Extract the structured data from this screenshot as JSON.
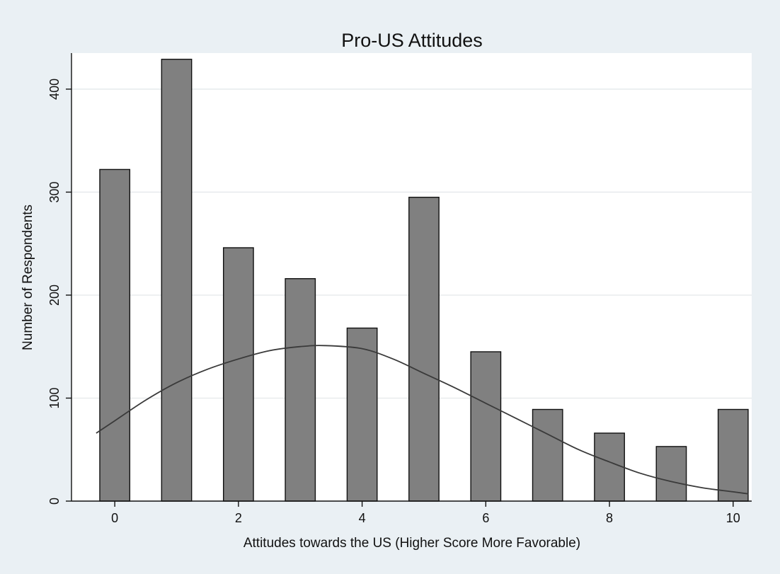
{
  "chart_data": {
    "type": "bar",
    "title": "Pro-US Attitudes",
    "xlabel": "Attitudes towards the US (Higher Score More Favorable)",
    "ylabel": "Number of Respondents",
    "x": [
      0,
      1,
      2,
      3,
      4,
      5,
      6,
      7,
      8,
      9,
      10
    ],
    "values": [
      322,
      429,
      246,
      216,
      168,
      295,
      145,
      89,
      66,
      53,
      89
    ],
    "xlim": [
      -0.7,
      10.3
    ],
    "ylim": [
      0,
      435
    ],
    "xticks": [
      0,
      2,
      4,
      6,
      8,
      10
    ],
    "yticks": [
      0,
      100,
      200,
      300,
      400
    ],
    "grid": true,
    "legend": "none",
    "overlay": {
      "type": "normal-density-curve",
      "x": [
        -0.3,
        0,
        0.5,
        1,
        1.5,
        2,
        2.5,
        3,
        3.4,
        4,
        4.5,
        5,
        5.5,
        6,
        6.5,
        7,
        7.5,
        8,
        8.5,
        9,
        9.5,
        10,
        10.25
      ],
      "y": [
        66,
        78,
        98,
        115,
        128,
        138,
        146,
        150,
        151,
        148,
        138,
        124,
        110,
        95,
        80,
        65,
        50,
        38,
        27,
        19,
        13,
        9,
        7
      ]
    },
    "colors": {
      "background": "#eaf0f4",
      "plot_area": "#ffffff",
      "bar_fill": "#808080",
      "bar_stroke": "#111111",
      "grid": "#e4e8eb",
      "curve": "#3a3a3a",
      "axis": "#111111"
    }
  }
}
